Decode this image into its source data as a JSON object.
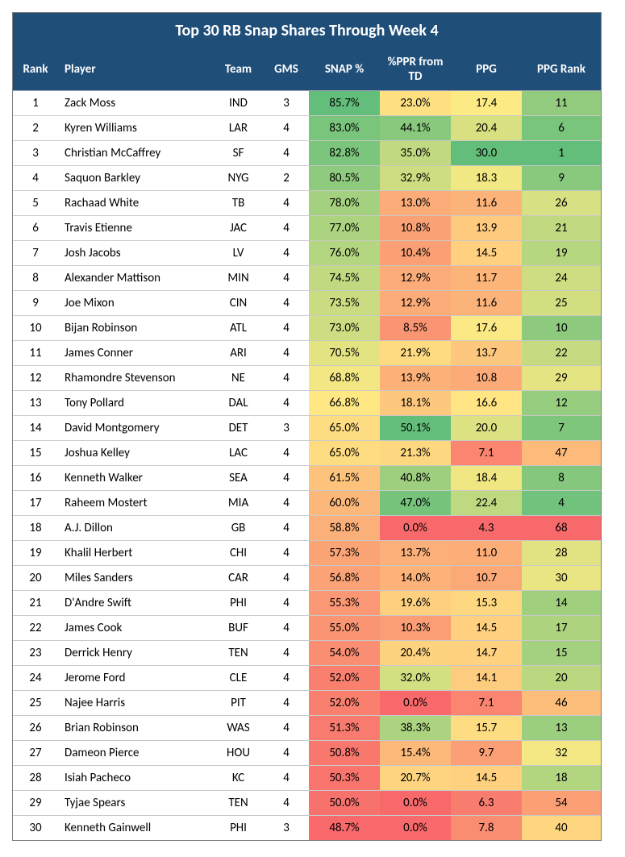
{
  "title": "Top 30 RB Snap Shares Through Week 4",
  "columns": [
    "Rank",
    "Player",
    "Team",
    "GMS",
    "SNAP %",
    "%PPR from TD",
    "PPG",
    "PPG Rank"
  ],
  "colors": {
    "header_bg": "#1f4e79",
    "header_text": "#ffffff",
    "scale": {
      "best": "#63be7b",
      "mid": "#ffeb84",
      "worst": "#f8696b"
    }
  },
  "color_ranges": {
    "snap": {
      "min": 48.7,
      "max": 85.7
    },
    "ppr": {
      "min": 0.0,
      "max": 50.1
    },
    "ppg": {
      "min": 4.3,
      "max": 30.0
    },
    "ppgrank": {
      "min": 1,
      "max": 68
    }
  },
  "rows": [
    {
      "rank": 1,
      "player": "Zack Moss",
      "team": "IND",
      "gms": 3,
      "snap": 85.7,
      "ppr": 23.0,
      "ppg": 17.4,
      "ppgrank": 11
    },
    {
      "rank": 2,
      "player": "Kyren Williams",
      "team": "LAR",
      "gms": 4,
      "snap": 83.0,
      "ppr": 44.1,
      "ppg": 20.4,
      "ppgrank": 6
    },
    {
      "rank": 3,
      "player": "Christian McCaffrey",
      "team": "SF",
      "gms": 4,
      "snap": 82.8,
      "ppr": 35.0,
      "ppg": 30.0,
      "ppgrank": 1
    },
    {
      "rank": 4,
      "player": "Saquon Barkley",
      "team": "NYG",
      "gms": 2,
      "snap": 80.5,
      "ppr": 32.9,
      "ppg": 18.3,
      "ppgrank": 9
    },
    {
      "rank": 5,
      "player": "Rachaad White",
      "team": "TB",
      "gms": 4,
      "snap": 78.0,
      "ppr": 13.0,
      "ppg": 11.6,
      "ppgrank": 26
    },
    {
      "rank": 6,
      "player": "Travis Etienne",
      "team": "JAC",
      "gms": 4,
      "snap": 77.0,
      "ppr": 10.8,
      "ppg": 13.9,
      "ppgrank": 21
    },
    {
      "rank": 7,
      "player": "Josh Jacobs",
      "team": "LV",
      "gms": 4,
      "snap": 76.0,
      "ppr": 10.4,
      "ppg": 14.5,
      "ppgrank": 19
    },
    {
      "rank": 8,
      "player": "Alexander Mattison",
      "team": "MIN",
      "gms": 4,
      "snap": 74.5,
      "ppr": 12.9,
      "ppg": 11.7,
      "ppgrank": 24
    },
    {
      "rank": 9,
      "player": "Joe Mixon",
      "team": "CIN",
      "gms": 4,
      "snap": 73.5,
      "ppr": 12.9,
      "ppg": 11.6,
      "ppgrank": 25
    },
    {
      "rank": 10,
      "player": "Bijan Robinson",
      "team": "ATL",
      "gms": 4,
      "snap": 73.0,
      "ppr": 8.5,
      "ppg": 17.6,
      "ppgrank": 10
    },
    {
      "rank": 11,
      "player": "James Conner",
      "team": "ARI",
      "gms": 4,
      "snap": 70.5,
      "ppr": 21.9,
      "ppg": 13.7,
      "ppgrank": 22
    },
    {
      "rank": 12,
      "player": "Rhamondre Stevenson",
      "team": "NE",
      "gms": 4,
      "snap": 68.8,
      "ppr": 13.9,
      "ppg": 10.8,
      "ppgrank": 29
    },
    {
      "rank": 13,
      "player": "Tony Pollard",
      "team": "DAL",
      "gms": 4,
      "snap": 66.8,
      "ppr": 18.1,
      "ppg": 16.6,
      "ppgrank": 12
    },
    {
      "rank": 14,
      "player": "David Montgomery",
      "team": "DET",
      "gms": 3,
      "snap": 65.0,
      "ppr": 50.1,
      "ppg": 20.0,
      "ppgrank": 7
    },
    {
      "rank": 15,
      "player": "Joshua Kelley",
      "team": "LAC",
      "gms": 4,
      "snap": 65.0,
      "ppr": 21.3,
      "ppg": 7.1,
      "ppgrank": 47
    },
    {
      "rank": 16,
      "player": "Kenneth Walker",
      "team": "SEA",
      "gms": 4,
      "snap": 61.5,
      "ppr": 40.8,
      "ppg": 18.4,
      "ppgrank": 8
    },
    {
      "rank": 17,
      "player": "Raheem Mostert",
      "team": "MIA",
      "gms": 4,
      "snap": 60.0,
      "ppr": 47.0,
      "ppg": 22.4,
      "ppgrank": 4
    },
    {
      "rank": 18,
      "player": "A.J. Dillon",
      "team": "GB",
      "gms": 4,
      "snap": 58.8,
      "ppr": 0.0,
      "ppg": 4.3,
      "ppgrank": 68
    },
    {
      "rank": 19,
      "player": "Khalil Herbert",
      "team": "CHI",
      "gms": 4,
      "snap": 57.3,
      "ppr": 13.7,
      "ppg": 11.0,
      "ppgrank": 28
    },
    {
      "rank": 20,
      "player": "Miles Sanders",
      "team": "CAR",
      "gms": 4,
      "snap": 56.8,
      "ppr": 14.0,
      "ppg": 10.7,
      "ppgrank": 30
    },
    {
      "rank": 21,
      "player": "D'Andre Swift",
      "team": "PHI",
      "gms": 4,
      "snap": 55.3,
      "ppr": 19.6,
      "ppg": 15.3,
      "ppgrank": 14
    },
    {
      "rank": 22,
      "player": "James Cook",
      "team": "BUF",
      "gms": 4,
      "snap": 55.0,
      "ppr": 10.3,
      "ppg": 14.5,
      "ppgrank": 17
    },
    {
      "rank": 23,
      "player": "Derrick Henry",
      "team": "TEN",
      "gms": 4,
      "snap": 54.0,
      "ppr": 20.4,
      "ppg": 14.7,
      "ppgrank": 15
    },
    {
      "rank": 24,
      "player": "Jerome Ford",
      "team": "CLE",
      "gms": 4,
      "snap": 52.0,
      "ppr": 32.0,
      "ppg": 14.1,
      "ppgrank": 20
    },
    {
      "rank": 25,
      "player": "Najee Harris",
      "team": "PIT",
      "gms": 4,
      "snap": 52.0,
      "ppr": 0.0,
      "ppg": 7.1,
      "ppgrank": 46
    },
    {
      "rank": 26,
      "player": "Brian Robinson",
      "team": "WAS",
      "gms": 4,
      "snap": 51.3,
      "ppr": 38.3,
      "ppg": 15.7,
      "ppgrank": 13
    },
    {
      "rank": 27,
      "player": "Dameon Pierce",
      "team": "HOU",
      "gms": 4,
      "snap": 50.8,
      "ppr": 15.4,
      "ppg": 9.7,
      "ppgrank": 32
    },
    {
      "rank": 28,
      "player": "Isiah Pacheco",
      "team": "KC",
      "gms": 4,
      "snap": 50.3,
      "ppr": 20.7,
      "ppg": 14.5,
      "ppgrank": 18
    },
    {
      "rank": 29,
      "player": "Tyjae Spears",
      "team": "TEN",
      "gms": 4,
      "snap": 50.0,
      "ppr": 0.0,
      "ppg": 6.3,
      "ppgrank": 54
    },
    {
      "rank": 30,
      "player": "Kenneth Gainwell",
      "team": "PHI",
      "gms": 3,
      "snap": 48.7,
      "ppr": 0.0,
      "ppg": 7.8,
      "ppgrank": 40
    }
  ]
}
